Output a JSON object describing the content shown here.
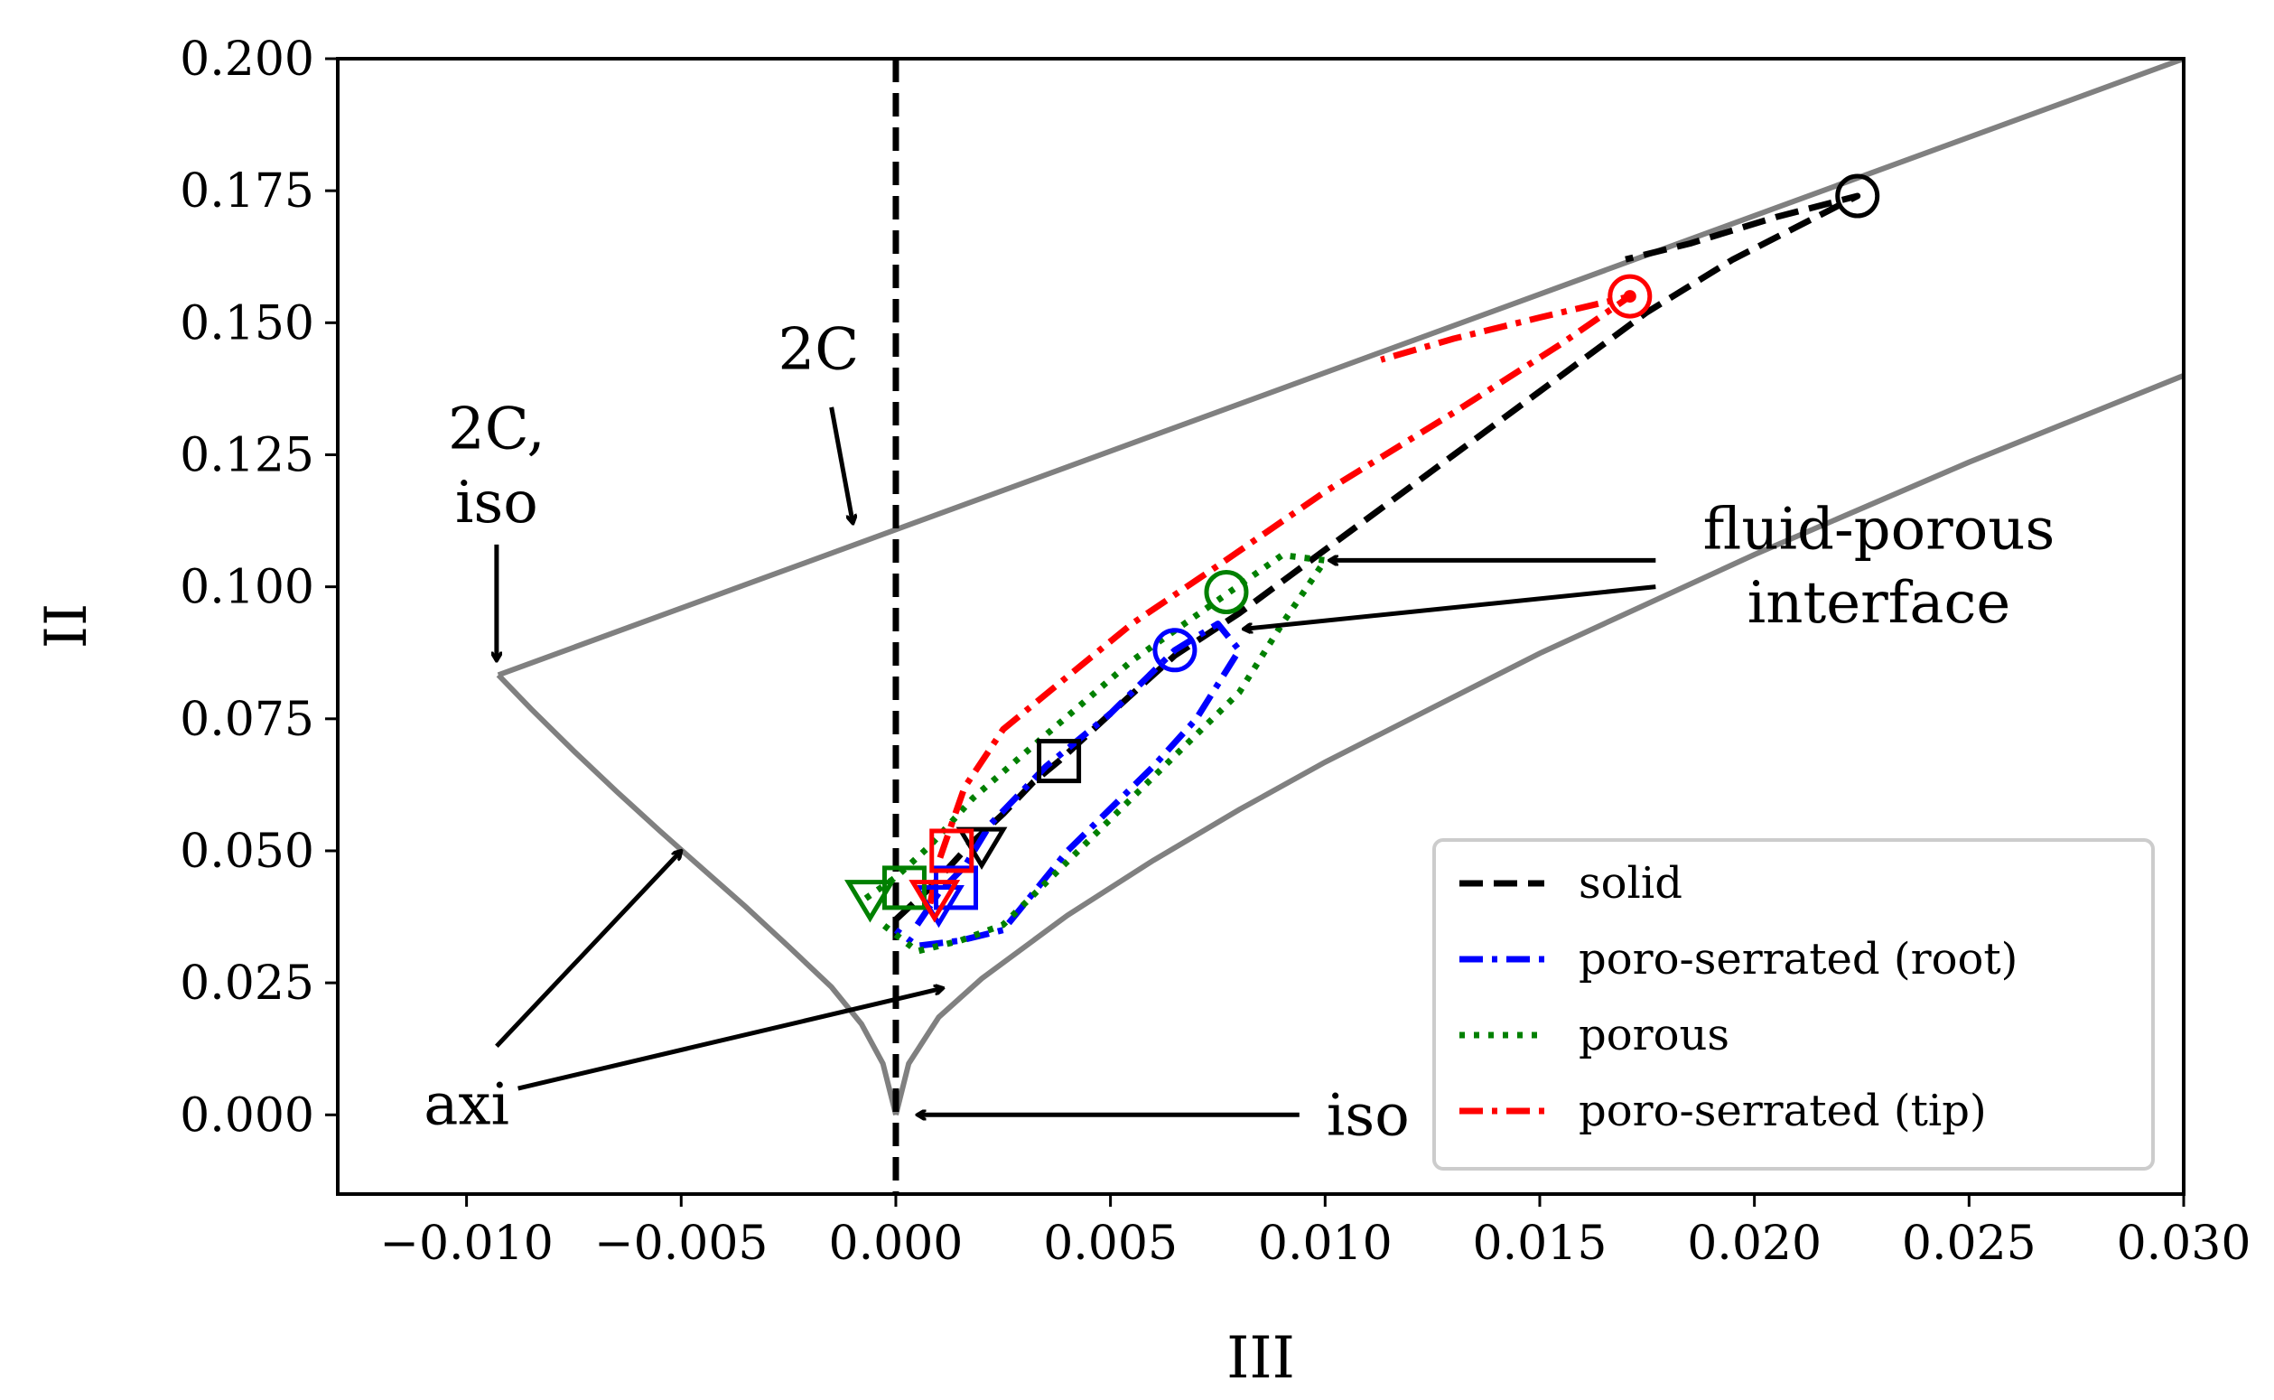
{
  "chart_data": {
    "type": "line",
    "title": "",
    "xlabel": "III",
    "ylabel": "II",
    "xlim": [
      -0.013,
      0.03
    ],
    "ylim": [
      -0.015,
      0.2
    ],
    "xticks": [
      -0.01,
      -0.005,
      0.0,
      0.005,
      0.01,
      0.015,
      0.02,
      0.025,
      0.03
    ],
    "xtick_labels": [
      "−0.010",
      "−0.005",
      "0.000",
      "0.005",
      "0.010",
      "0.015",
      "0.020",
      "0.025",
      "0.030"
    ],
    "yticks": [
      0.0,
      0.025,
      0.05,
      0.075,
      0.1,
      0.125,
      0.15,
      0.175,
      0.2
    ],
    "ytick_labels": [
      "0.000",
      "0.025",
      "0.050",
      "0.075",
      "0.100",
      "0.125",
      "0.150",
      "0.175",
      "0.200"
    ],
    "grid": false,
    "legend_position": "bottom-right",
    "boundary": {
      "color": "#808080",
      "upper_line": [
        [
          -0.00926,
          0.0833
        ],
        [
          0.03,
          0.2
        ]
      ],
      "left_branch": [
        [
          -0.00926,
          0.0833
        ],
        [
          -0.0085,
          0.0769
        ],
        [
          -0.0075,
          0.0689
        ],
        [
          -0.0065,
          0.0612
        ],
        [
          -0.0055,
          0.0538
        ],
        [
          -0.0045,
          0.0466
        ],
        [
          -0.0035,
          0.0394
        ],
        [
          -0.0025,
          0.0319
        ],
        [
          -0.0015,
          0.0242
        ],
        [
          -0.0008,
          0.0172
        ],
        [
          -0.0003,
          0.0097
        ],
        [
          0.0,
          0.0
        ]
      ],
      "right_branch": [
        [
          0.0,
          0.0
        ],
        [
          0.0003,
          0.0097
        ],
        [
          0.001,
          0.0185
        ],
        [
          0.002,
          0.0258
        ],
        [
          0.004,
          0.0378
        ],
        [
          0.006,
          0.0482
        ],
        [
          0.008,
          0.0578
        ],
        [
          0.01,
          0.0668
        ],
        [
          0.015,
          0.0874
        ],
        [
          0.02,
          0.1061
        ],
        [
          0.025,
          0.1236
        ],
        [
          0.03,
          0.14
        ]
      ],
      "vertical_2C": {
        "x": 0.0,
        "color": "#000000",
        "dash": "dashed"
      }
    },
    "series": [
      {
        "name": "solid",
        "color": "#000000",
        "dash": "dashed",
        "points": [
          [
            0.0,
            0.037
          ],
          [
            0.0008,
            0.043
          ],
          [
            0.0017,
            0.051
          ],
          [
            0.0025,
            0.057
          ],
          [
            0.0032,
            0.063
          ],
          [
            0.0038,
            0.067
          ],
          [
            0.005,
            0.076
          ],
          [
            0.0065,
            0.087
          ],
          [
            0.008,
            0.095
          ],
          [
            0.01,
            0.107
          ],
          [
            0.013,
            0.125
          ],
          [
            0.0155,
            0.14
          ],
          [
            0.0175,
            0.152
          ],
          [
            0.0195,
            0.162
          ],
          [
            0.0224,
            0.174
          ],
          [
            0.0205,
            0.17
          ],
          [
            0.0185,
            0.165
          ],
          [
            0.017,
            0.162
          ]
        ],
        "markers": [
          {
            "shape": "triangle-down",
            "at": [
              0.002,
              0.051
            ]
          },
          {
            "shape": "square",
            "at": [
              0.0038,
              0.067
            ]
          },
          {
            "shape": "circle",
            "at": [
              0.0224,
              0.174
            ]
          }
        ]
      },
      {
        "name": "poro-serrated (root)",
        "color": "#0000ff",
        "dash": "dashdot",
        "points": [
          [
            0.0005,
            0.036
          ],
          [
            0.001,
            0.042
          ],
          [
            0.0016,
            0.047
          ],
          [
            0.0022,
            0.055
          ],
          [
            0.0035,
            0.066
          ],
          [
            0.005,
            0.076
          ],
          [
            0.0065,
            0.088
          ],
          [
            0.0075,
            0.093
          ],
          [
            0.008,
            0.088
          ],
          [
            0.007,
            0.075
          ],
          [
            0.006,
            0.066
          ],
          [
            0.004,
            0.05
          ],
          [
            0.0025,
            0.035
          ],
          [
            0.0015,
            0.033
          ],
          [
            0.0005,
            0.032
          ],
          [
            0.0,
            0.035
          ]
        ],
        "markers": [
          {
            "shape": "triangle-down",
            "at": [
              0.001,
              0.04
            ]
          },
          {
            "shape": "square",
            "at": [
              0.0014,
              0.043
            ]
          },
          {
            "shape": "circle",
            "at": [
              0.0065,
              0.088
            ]
          }
        ]
      },
      {
        "name": "porous",
        "color": "#008000",
        "dash": "dotted",
        "points": [
          [
            -0.0007,
            0.041
          ],
          [
            0.0,
            0.045
          ],
          [
            0.0008,
            0.051
          ],
          [
            0.0018,
            0.06
          ],
          [
            0.0035,
            0.072
          ],
          [
            0.0055,
            0.086
          ],
          [
            0.0076,
            0.098
          ],
          [
            0.009,
            0.106
          ],
          [
            0.01,
            0.105
          ],
          [
            0.009,
            0.093
          ],
          [
            0.008,
            0.08
          ],
          [
            0.006,
            0.064
          ],
          [
            0.004,
            0.048
          ],
          [
            0.0025,
            0.036
          ],
          [
            0.0015,
            0.033
          ],
          [
            0.0005,
            0.031
          ],
          [
            -0.0003,
            0.036
          ]
        ],
        "markers": [
          {
            "shape": "triangle-down",
            "at": [
              -0.0006,
              0.041
            ]
          },
          {
            "shape": "square",
            "at": [
              0.0002,
              0.043
            ]
          },
          {
            "shape": "circle",
            "at": [
              0.0077,
              0.099
            ]
          }
        ]
      },
      {
        "name": "poro-serrated (tip)",
        "color": "#ff0000",
        "dash": "dashdot",
        "points": [
          [
            0.0008,
            0.04
          ],
          [
            0.001,
            0.048
          ],
          [
            0.0013,
            0.055
          ],
          [
            0.0016,
            0.062
          ],
          [
            0.0025,
            0.073
          ],
          [
            0.004,
            0.083
          ],
          [
            0.0055,
            0.093
          ],
          [
            0.0075,
            0.104
          ],
          [
            0.01,
            0.118
          ],
          [
            0.013,
            0.133
          ],
          [
            0.0155,
            0.146
          ],
          [
            0.0171,
            0.155
          ],
          [
            0.015,
            0.151
          ],
          [
            0.013,
            0.147
          ],
          [
            0.0113,
            0.143
          ]
        ],
        "markers": [
          {
            "shape": "triangle-down",
            "at": [
              0.0009,
              0.041
            ]
          },
          {
            "shape": "square",
            "at": [
              0.0013,
              0.05
            ]
          },
          {
            "shape": "circle",
            "at": [
              0.0171,
              0.155
            ]
          },
          {
            "shape": "dot",
            "at": [
              0.0171,
              0.155
            ]
          }
        ]
      }
    ],
    "annotations": [
      {
        "text": "2C",
        "at": [
          -0.0018,
          0.145
        ],
        "arrow_from": [
          -0.0015,
          0.134
        ],
        "arrow_to": [
          -0.001,
          0.112
        ]
      },
      {
        "text": "2C,",
        "at": [
          -0.0093,
          0.13
        ]
      },
      {
        "text": "iso",
        "at": [
          -0.0093,
          0.116
        ],
        "arrow_from": [
          -0.0093,
          0.108
        ],
        "arrow_to": [
          -0.0093,
          0.086
        ]
      },
      {
        "text": "axi",
        "at": [
          -0.01,
          0.002
        ],
        "arrows": [
          {
            "from": [
              -0.0093,
              0.013
            ],
            "to": [
              -0.005,
              0.05
            ]
          },
          {
            "from": [
              -0.0088,
              0.005
            ],
            "to": [
              0.0011,
              0.024
            ]
          }
        ]
      },
      {
        "text": "iso",
        "at": [
          0.011,
          0.0
        ],
        "arrow_from": [
          0.0094,
          0.0
        ],
        "arrow_to": [
          0.0005,
          0.0
        ]
      },
      {
        "text": "fluid-porous",
        "at": [
          0.0229,
          0.111
        ]
      },
      {
        "text": "interface",
        "at": [
          0.0229,
          0.097
        ],
        "arrows": [
          {
            "from": [
              0.0177,
              0.105
            ],
            "to": [
              0.0101,
              0.105
            ]
          },
          {
            "from": [
              0.0177,
              0.1
            ],
            "to": [
              0.0081,
              0.092
            ]
          }
        ]
      }
    ]
  }
}
